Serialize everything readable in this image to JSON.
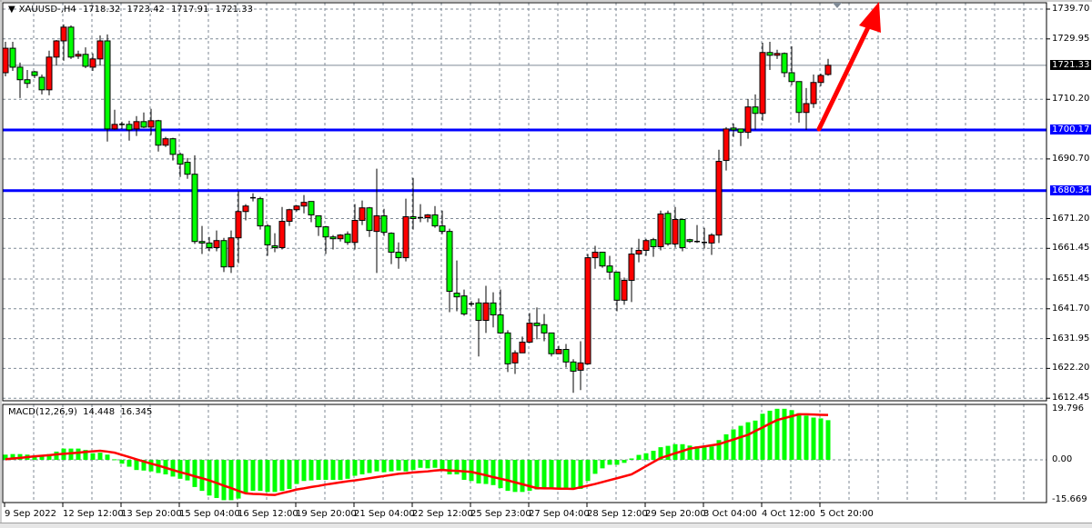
{
  "header": {
    "symbol": "XAUUSD-,H4",
    "open": "1718.32",
    "high": "1723.42",
    "low": "1717.91",
    "close": "1721.33",
    "dropdown_icon": "triangle-down-icon"
  },
  "macd_header": {
    "name": "MACD(12,26,9)",
    "main": "14.448",
    "signal": "16.345"
  },
  "colors": {
    "bull_candle": "#ff0000",
    "bear_candle": "#00ff00",
    "level_line": "#0000ff",
    "bid_line": "#7f8a96",
    "arrow": "#ff0000",
    "histogram": "#00ff00",
    "signal_line": "#ff0000",
    "grid": "#7f8a96"
  },
  "price_axis": {
    "labels": [
      "1739.70",
      "1729.95",
      "1710.20",
      "1690.70",
      "1671.20",
      "1661.45",
      "1651.45",
      "1641.70",
      "1631.95",
      "1622.20",
      "1612.45"
    ],
    "current_price": "1721.33",
    "levels": [
      "1700.17",
      "1680.34"
    ]
  },
  "macd_axis": {
    "labels": [
      "19.796",
      "0.00",
      "-15.669"
    ]
  },
  "time_axis": {
    "labels": [
      "9 Sep 2022",
      "12 Sep 12:00",
      "13 Sep 20:00",
      "15 Sep 04:00",
      "16 Sep 12:00",
      "19 Sep 20:00",
      "21 Sep 04:00",
      "22 Sep 12:00",
      "25 Sep 23:00",
      "27 Sep 04:00",
      "28 Sep 12:00",
      "29 Sep 20:00",
      "3 Oct 04:00",
      "4 Oct 12:00",
      "5 Oct 20:00"
    ]
  },
  "chart_data": [
    {
      "type": "candlestick",
      "symbol": "XAUUSD-",
      "timeframe": "H4",
      "ylim": [
        1612.45,
        1739.7
      ],
      "grid": true,
      "fields": [
        "open",
        "high",
        "low",
        "close"
      ],
      "horizontal_levels": [
        1700.17,
        1680.34
      ],
      "bid_line": 1721.33,
      "annotation": "red-up-arrow",
      "candles": [
        [
          1718.9,
          1729.0,
          1717.7,
          1726.9
        ],
        [
          1726.9,
          1729.0,
          1719.5,
          1720.7
        ],
        [
          1720.7,
          1722.2,
          1710.6,
          1716.6
        ],
        [
          1716.6,
          1719.8,
          1713.9,
          1715.4
        ],
        [
          1719.2,
          1719.5,
          1717.1,
          1718.0
        ],
        [
          1717.4,
          1718.3,
          1711.8,
          1713.3
        ],
        [
          1713.3,
          1726.1,
          1711.5,
          1724.0
        ],
        [
          1724.0,
          1729.6,
          1721.3,
          1729.3
        ],
        [
          1729.3,
          1734.7,
          1722.8,
          1733.8
        ],
        [
          1733.8,
          1734.4,
          1723.4,
          1724.0
        ],
        [
          1724.3,
          1726.1,
          1723.4,
          1724.9
        ],
        [
          1724.9,
          1727.2,
          1720.4,
          1721.0
        ],
        [
          1720.7,
          1725.2,
          1719.5,
          1723.4
        ],
        [
          1723.4,
          1731.1,
          1721.3,
          1729.3
        ],
        [
          1729.3,
          1731.4,
          1696.4,
          1700.5
        ],
        [
          1700.5,
          1706.8,
          1700.2,
          1702.0
        ],
        [
          1701.7,
          1702.9,
          1700.5,
          1702.0
        ],
        [
          1702.0,
          1703.2,
          1696.7,
          1700.2
        ],
        [
          1700.5,
          1704.7,
          1698.2,
          1702.9
        ],
        [
          1702.9,
          1705.9,
          1700.8,
          1701.1
        ],
        [
          1701.1,
          1707.1,
          1698.5,
          1703.2
        ],
        [
          1703.2,
          1703.5,
          1693.1,
          1695.2
        ],
        [
          1695.2,
          1697.9,
          1694.6,
          1697.3
        ],
        [
          1697.3,
          1697.6,
          1690.2,
          1692.2
        ],
        [
          1692.2,
          1692.8,
          1684.8,
          1689.0
        ],
        [
          1689.6,
          1691.0,
          1684.2,
          1685.7
        ],
        [
          1685.7,
          1691.9,
          1662.9,
          1663.7
        ],
        [
          1663.7,
          1668.8,
          1659.6,
          1663.2
        ],
        [
          1663.2,
          1665.2,
          1660.5,
          1661.7
        ],
        [
          1661.7,
          1667.3,
          1660.5,
          1664.0
        ],
        [
          1664.0,
          1664.9,
          1653.7,
          1655.4
        ],
        [
          1655.4,
          1667.3,
          1653.4,
          1664.9
        ],
        [
          1664.9,
          1680.1,
          1656.6,
          1673.5
        ],
        [
          1673.5,
          1675.9,
          1670.6,
          1675.3
        ],
        [
          1677.7,
          1679.5,
          1676.8,
          1678.0
        ],
        [
          1677.7,
          1678.3,
          1667.6,
          1668.8
        ],
        [
          1668.8,
          1669.4,
          1659.0,
          1662.6
        ],
        [
          1662.3,
          1666.4,
          1660.2,
          1661.7
        ],
        [
          1661.7,
          1675.0,
          1661.1,
          1670.3
        ],
        [
          1670.3,
          1674.4,
          1668.8,
          1674.1
        ],
        [
          1674.1,
          1675.6,
          1673.5,
          1675.3
        ],
        [
          1675.3,
          1678.9,
          1672.9,
          1676.5
        ],
        [
          1676.8,
          1676.8,
          1670.0,
          1672.4
        ],
        [
          1672.1,
          1672.1,
          1665.5,
          1668.5
        ],
        [
          1668.5,
          1668.8,
          1659.6,
          1665.2
        ],
        [
          1665.2,
          1665.8,
          1661.1,
          1664.6
        ],
        [
          1664.6,
          1666.1,
          1663.7,
          1665.8
        ],
        [
          1666.1,
          1667.0,
          1662.6,
          1663.4
        ],
        [
          1663.4,
          1675.9,
          1661.1,
          1670.6
        ],
        [
          1670.6,
          1677.1,
          1669.1,
          1674.7
        ],
        [
          1674.7,
          1675.0,
          1665.2,
          1667.3
        ],
        [
          1667.0,
          1687.5,
          1653.4,
          1672.1
        ],
        [
          1672.1,
          1674.4,
          1665.5,
          1666.7
        ],
        [
          1666.4,
          1666.7,
          1656.3,
          1660.2
        ],
        [
          1660.2,
          1663.4,
          1654.8,
          1658.4
        ],
        [
          1658.4,
          1677.7,
          1657.2,
          1671.8
        ],
        [
          1671.8,
          1684.5,
          1667.6,
          1671.2
        ],
        [
          1671.2,
          1675.9,
          1670.0,
          1671.5
        ],
        [
          1671.5,
          1672.7,
          1670.0,
          1672.4
        ],
        [
          1672.4,
          1675.3,
          1668.2,
          1668.8
        ],
        [
          1668.8,
          1673.8,
          1666.1,
          1667.0
        ],
        [
          1667.0,
          1667.9,
          1640.6,
          1647.4
        ],
        [
          1646.8,
          1657.5,
          1640.9,
          1645.6
        ],
        [
          1645.9,
          1648.0,
          1639.4,
          1640.0
        ],
        [
          1643.3,
          1644.2,
          1642.4,
          1643.3
        ],
        [
          1643.6,
          1645.1,
          1626.1,
          1637.9
        ],
        [
          1637.9,
          1649.2,
          1633.8,
          1643.6
        ],
        [
          1643.6,
          1647.1,
          1635.6,
          1639.7
        ],
        [
          1639.7,
          1648.0,
          1633.5,
          1633.8
        ],
        [
          1633.8,
          1634.7,
          1621.0,
          1623.7
        ],
        [
          1624.0,
          1628.1,
          1620.4,
          1627.3
        ],
        [
          1627.3,
          1632.6,
          1627.3,
          1630.8
        ],
        [
          1630.8,
          1640.3,
          1630.5,
          1637.0
        ],
        [
          1637.0,
          1642.1,
          1631.7,
          1636.2
        ],
        [
          1636.5,
          1640.0,
          1631.1,
          1633.8
        ],
        [
          1633.8,
          1633.8,
          1626.1,
          1627.0
        ],
        [
          1627.0,
          1629.6,
          1627.0,
          1628.4
        ],
        [
          1628.4,
          1630.2,
          1622.5,
          1624.3
        ],
        [
          1624.3,
          1625.2,
          1614.2,
          1621.3
        ],
        [
          1621.6,
          1631.1,
          1615.1,
          1624.0
        ],
        [
          1623.7,
          1659.6,
          1623.4,
          1658.4
        ],
        [
          1658.4,
          1662.3,
          1654.8,
          1660.2
        ],
        [
          1660.2,
          1660.2,
          1655.1,
          1655.7
        ],
        [
          1655.7,
          1659.0,
          1651.3,
          1653.7
        ],
        [
          1653.7,
          1653.7,
          1640.9,
          1644.5
        ],
        [
          1644.5,
          1651.9,
          1643.0,
          1651.0
        ],
        [
          1651.0,
          1661.7,
          1643.9,
          1659.6
        ],
        [
          1659.6,
          1664.6,
          1656.9,
          1660.8
        ],
        [
          1660.8,
          1664.6,
          1659.0,
          1664.0
        ],
        [
          1664.3,
          1664.9,
          1658.7,
          1662.0
        ],
        [
          1662.0,
          1673.8,
          1660.8,
          1672.7
        ],
        [
          1672.9,
          1673.8,
          1662.3,
          1662.9
        ],
        [
          1662.9,
          1675.0,
          1661.7,
          1670.9
        ],
        [
          1670.9,
          1671.2,
          1660.5,
          1661.7
        ],
        [
          1664.3,
          1664.6,
          1663.2,
          1663.7
        ],
        [
          1663.7,
          1669.1,
          1663.2,
          1663.4
        ],
        [
          1663.4,
          1668.2,
          1661.4,
          1663.4
        ],
        [
          1663.2,
          1666.4,
          1659.3,
          1665.8
        ],
        [
          1665.8,
          1693.7,
          1663.2,
          1689.9
        ],
        [
          1690.2,
          1701.1,
          1686.9,
          1700.5
        ],
        [
          1700.8,
          1702.3,
          1697.9,
          1700.2
        ],
        [
          1700.5,
          1700.5,
          1694.9,
          1699.4
        ],
        [
          1699.4,
          1710.3,
          1697.3,
          1707.7
        ],
        [
          1707.7,
          1711.8,
          1700.2,
          1705.6
        ],
        [
          1705.6,
          1728.7,
          1703.2,
          1725.5
        ],
        [
          1725.5,
          1729.0,
          1719.8,
          1724.6
        ],
        [
          1724.6,
          1726.4,
          1723.4,
          1725.2
        ],
        [
          1725.2,
          1725.5,
          1717.4,
          1718.9
        ],
        [
          1718.9,
          1727.5,
          1714.8,
          1716.0
        ],
        [
          1716.0,
          1716.0,
          1702.6,
          1705.9
        ],
        [
          1705.9,
          1713.9,
          1700.2,
          1708.8
        ],
        [
          1708.8,
          1718.3,
          1707.4,
          1715.7
        ],
        [
          1715.7,
          1718.6,
          1714.5,
          1718.0
        ],
        [
          1718.32,
          1723.42,
          1717.91,
          1721.33
        ]
      ]
    },
    {
      "type": "bar",
      "title": "MACD(12,26,9)",
      "ylim": [
        -15.669,
        19.796
      ],
      "series": [
        {
          "name": "MACD",
          "kind": "histogram",
          "values": [
            1.9,
            2.1,
            2.1,
            1.9,
            1.5,
            1.3,
            2.1,
            3.0,
            4.1,
            4.1,
            4.1,
            3.6,
            2.4,
            2.6,
            1.9,
            0.2,
            -1.4,
            -2.5,
            -3.7,
            -3.9,
            -4.2,
            -4.8,
            -5.3,
            -6.1,
            -6.9,
            -7.5,
            -9.9,
            -11.3,
            -13.0,
            -13.9,
            -14.7,
            -14.7,
            -14.1,
            -11.9,
            -11.3,
            -11.3,
            -11.7,
            -11.7,
            -11.3,
            -10.6,
            -8.8,
            -7.7,
            -7.5,
            -7.3,
            -7.3,
            -7.3,
            -7.3,
            -6.9,
            -5.8,
            -5.3,
            -4.8,
            -4.2,
            -4.5,
            -4.2,
            -3.9,
            -4.2,
            -3.7,
            -2.9,
            -3.1,
            -2.9,
            -3.3,
            -5.3,
            -5.3,
            -7.3,
            -7.7,
            -8.6,
            -8.8,
            -9.2,
            -10.3,
            -11.3,
            -11.7,
            -11.7,
            -11.3,
            -10.8,
            -10.6,
            -10.6,
            -10.6,
            -10.6,
            -10.6,
            -10.6,
            -7.7,
            -5.1,
            -3.1,
            -1.8,
            -1.8,
            -1.1,
            0.5,
            1.8,
            2.4,
            3.3,
            4.6,
            5.1,
            5.7,
            5.7,
            5.2,
            4.9,
            4.6,
            4.9,
            7.2,
            9.3,
            11.1,
            12.4,
            13.7,
            14.3,
            16.8,
            17.9,
            18.6,
            18.6,
            18.1,
            17.0,
            16.1,
            15.4,
            15.1,
            14.448
          ]
        },
        {
          "name": "Signal",
          "kind": "line",
          "values": [
            0.2,
            0.5,
            0.7,
            1.0,
            1.3,
            1.5,
            1.7,
            2.0,
            2.2,
            2.4,
            2.6,
            2.9,
            3.1,
            3.3,
            3.0,
            2.6,
            1.8,
            1.0,
            0.2,
            -0.6,
            -1.4,
            -2.1,
            -2.9,
            -3.7,
            -4.5,
            -5.2,
            -6.0,
            -6.7,
            -7.5,
            -8.4,
            -9.4,
            -10.3,
            -11.3,
            -12.2,
            -12.4,
            -12.5,
            -12.7,
            -12.8,
            -12.1,
            -11.5,
            -10.8,
            -10.4,
            -9.9,
            -9.5,
            -9.0,
            -8.6,
            -8.2,
            -7.8,
            -7.5,
            -7.1,
            -6.7,
            -6.3,
            -5.9,
            -5.5,
            -5.1,
            -4.9,
            -4.6,
            -4.4,
            -4.2,
            -3.9,
            -3.7,
            -3.9,
            -4.0,
            -4.2,
            -4.4,
            -5.0,
            -5.6,
            -6.3,
            -6.9,
            -7.5,
            -8.2,
            -8.9,
            -9.6,
            -10.3,
            -10.4,
            -10.4,
            -10.5,
            -10.5,
            -10.6,
            -10.0,
            -9.4,
            -8.8,
            -8.1,
            -7.4,
            -6.7,
            -6.0,
            -5.3,
            -3.8,
            -2.3,
            -0.8,
            0.7,
            1.5,
            2.4,
            3.2,
            4.1,
            4.5,
            4.9,
            5.3,
            5.7,
            6.6,
            7.4,
            8.3,
            9.1,
            10.5,
            11.8,
            13.2,
            14.5,
            15.2,
            15.9,
            16.6,
            16.6,
            16.5,
            16.4,
            16.345
          ]
        }
      ]
    }
  ]
}
